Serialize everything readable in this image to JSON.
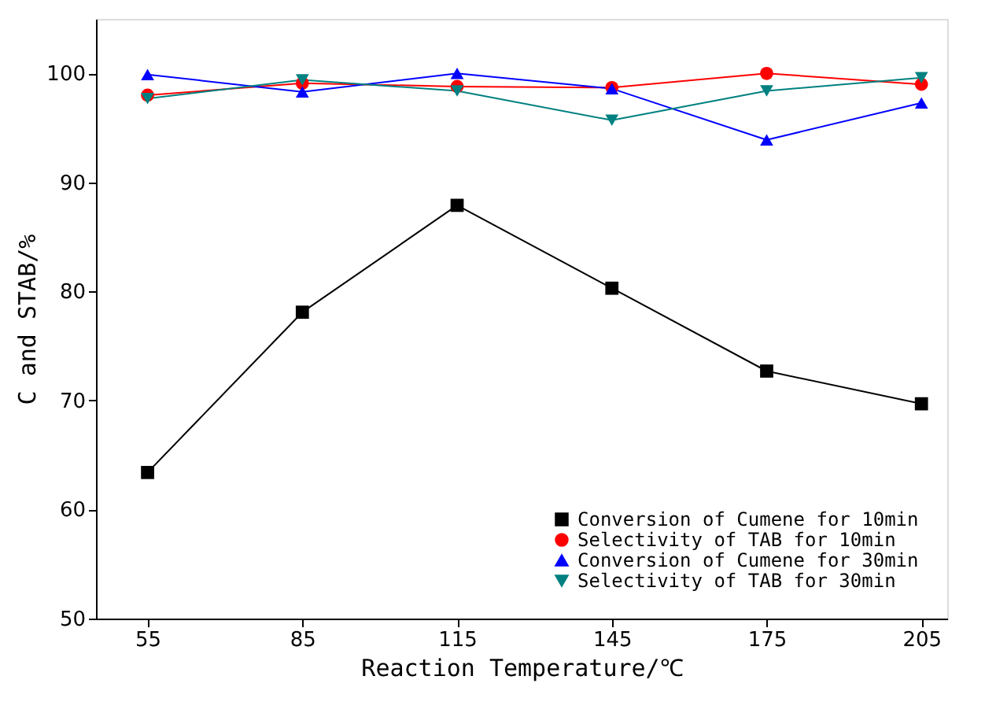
{
  "chart_data": {
    "type": "line",
    "xlabel": "Reaction Temperature/℃",
    "ylabel": "C and STAB/%",
    "x": [
      55,
      85,
      115,
      145,
      175,
      205
    ],
    "xlim": [
      45,
      210
    ],
    "xticks": [
      55,
      85,
      115,
      145,
      175,
      205
    ],
    "ylim": [
      50,
      105
    ],
    "yticks": [
      50,
      60,
      70,
      80,
      90,
      100
    ],
    "grid": false,
    "legend": "bottom right",
    "line_style": "solid",
    "series": [
      {
        "name": "Conversion of Cumene for 10min",
        "color": "#000000",
        "marker": "square",
        "values": [
          63.4,
          78.1,
          87.9,
          80.3,
          72.7,
          69.7
        ]
      },
      {
        "name": "Selectivity of TAB for 10min",
        "color": "#ff0000",
        "marker": "circle",
        "values": [
          98.0,
          99.1,
          98.8,
          98.7,
          100.0,
          99.0
        ]
      },
      {
        "name": "Conversion of Cumene for 30min",
        "color": "#0000ff",
        "marker": "triangle",
        "values": [
          99.9,
          98.3,
          100.0,
          98.6,
          93.9,
          97.3
        ]
      },
      {
        "name": "Selectivity of TAB for 30min",
        "color": "#008080",
        "marker": "triangle-down",
        "values": [
          97.7,
          99.4,
          98.4,
          95.7,
          98.4,
          99.6
        ]
      }
    ]
  }
}
